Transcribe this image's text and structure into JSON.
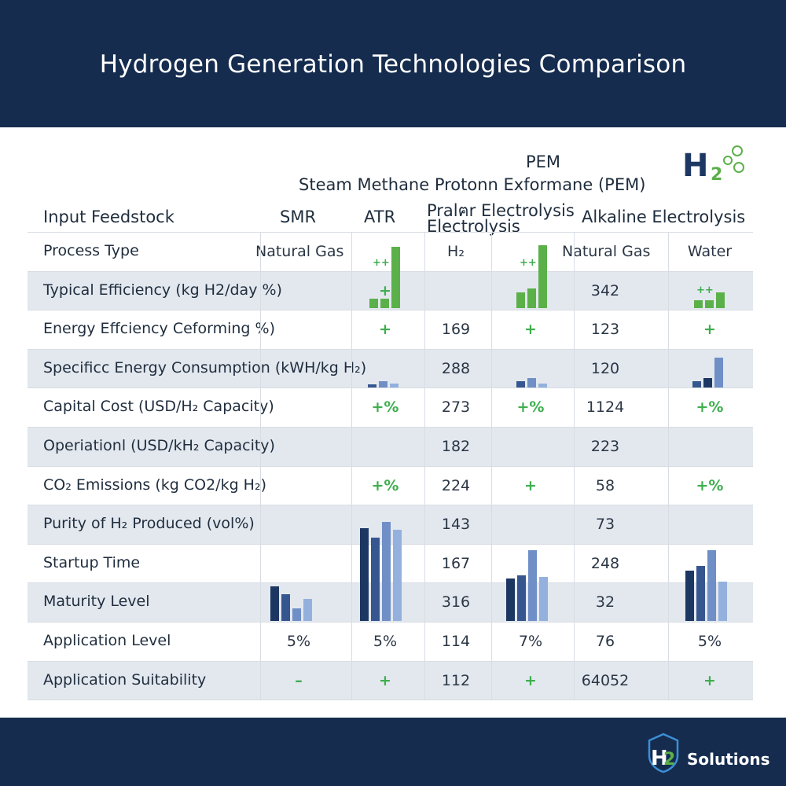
{
  "header": {
    "title": "Hydrogen Generation Technologies Comparison"
  },
  "subheader": {
    "pem": "PEM",
    "long": "Steam Methane Protonn Exformane (PEM)",
    "logo_h": "H",
    "logo_2": "2"
  },
  "columns": {
    "feed_label": "Input Feedstock",
    "smr": "SMR",
    "atr": "ATR",
    "prali_1": "Pralฅr Electrolysis",
    "prali_2": "Electrolysis",
    "alkaline": "Alkaline Electrolysis"
  },
  "rows": [
    {
      "label": "Process Type",
      "cells": [
        "Natural Gas",
        "",
        "H₂",
        "",
        "Natural Gas",
        "Water"
      ]
    },
    {
      "label": "Typical Efficiency (kg H2/day %)",
      "cells": [
        "",
        "+",
        "",
        "",
        "342",
        ""
      ]
    },
    {
      "label": "Energy Effciency Ceforming %)",
      "cells": [
        "",
        "+",
        "169",
        "+",
        "123",
        "+"
      ]
    },
    {
      "label": "Specificc Energy Consumption (kWH/kg H₂)",
      "cells": [
        "",
        "",
        "288",
        "",
        "120",
        ""
      ]
    },
    {
      "label": "Capital Cost (USD/H₂ Capacity)",
      "cells": [
        "",
        "+%",
        "273",
        "+%",
        "1124",
        "+%"
      ]
    },
    {
      "label": "Operiationl (USD/kH₂ Capacity)",
      "cells": [
        "",
        "",
        "182",
        "",
        "223",
        ""
      ]
    },
    {
      "label": "CO₂ Emissions (kg CO2/kg H₂)",
      "cells": [
        "",
        "+%",
        "224",
        "+",
        "58",
        "+%"
      ]
    },
    {
      "label": "Purity of H₂ Produced (vol%)",
      "cells": [
        "",
        "",
        "143",
        "",
        "73",
        ""
      ]
    },
    {
      "label": "Startup Time",
      "cells": [
        "",
        "",
        "167",
        "",
        "248",
        ""
      ]
    },
    {
      "label": "Maturity Level",
      "cells": [
        "",
        "",
        "316",
        "",
        "32",
        ""
      ]
    },
    {
      "label": "Application Level",
      "cells": [
        "5%",
        "5%",
        "114",
        "7%",
        "76",
        "5%"
      ]
    },
    {
      "label": "Application Suitability",
      "cells": [
        "–",
        "+",
        "112",
        "+",
        "64052",
        "+"
      ]
    }
  ],
  "mini_charts": {
    "row2_atr_plus": "++",
    "row2_pem_plus": "++",
    "row2_alk_plus": "++"
  },
  "footer": {
    "brand_h": "H",
    "brand_2": "2",
    "brand_text": "Solutions"
  },
  "colors": {
    "navy": "#152c4f",
    "green": "#5bb04a",
    "band": "#e3e8ef"
  }
}
